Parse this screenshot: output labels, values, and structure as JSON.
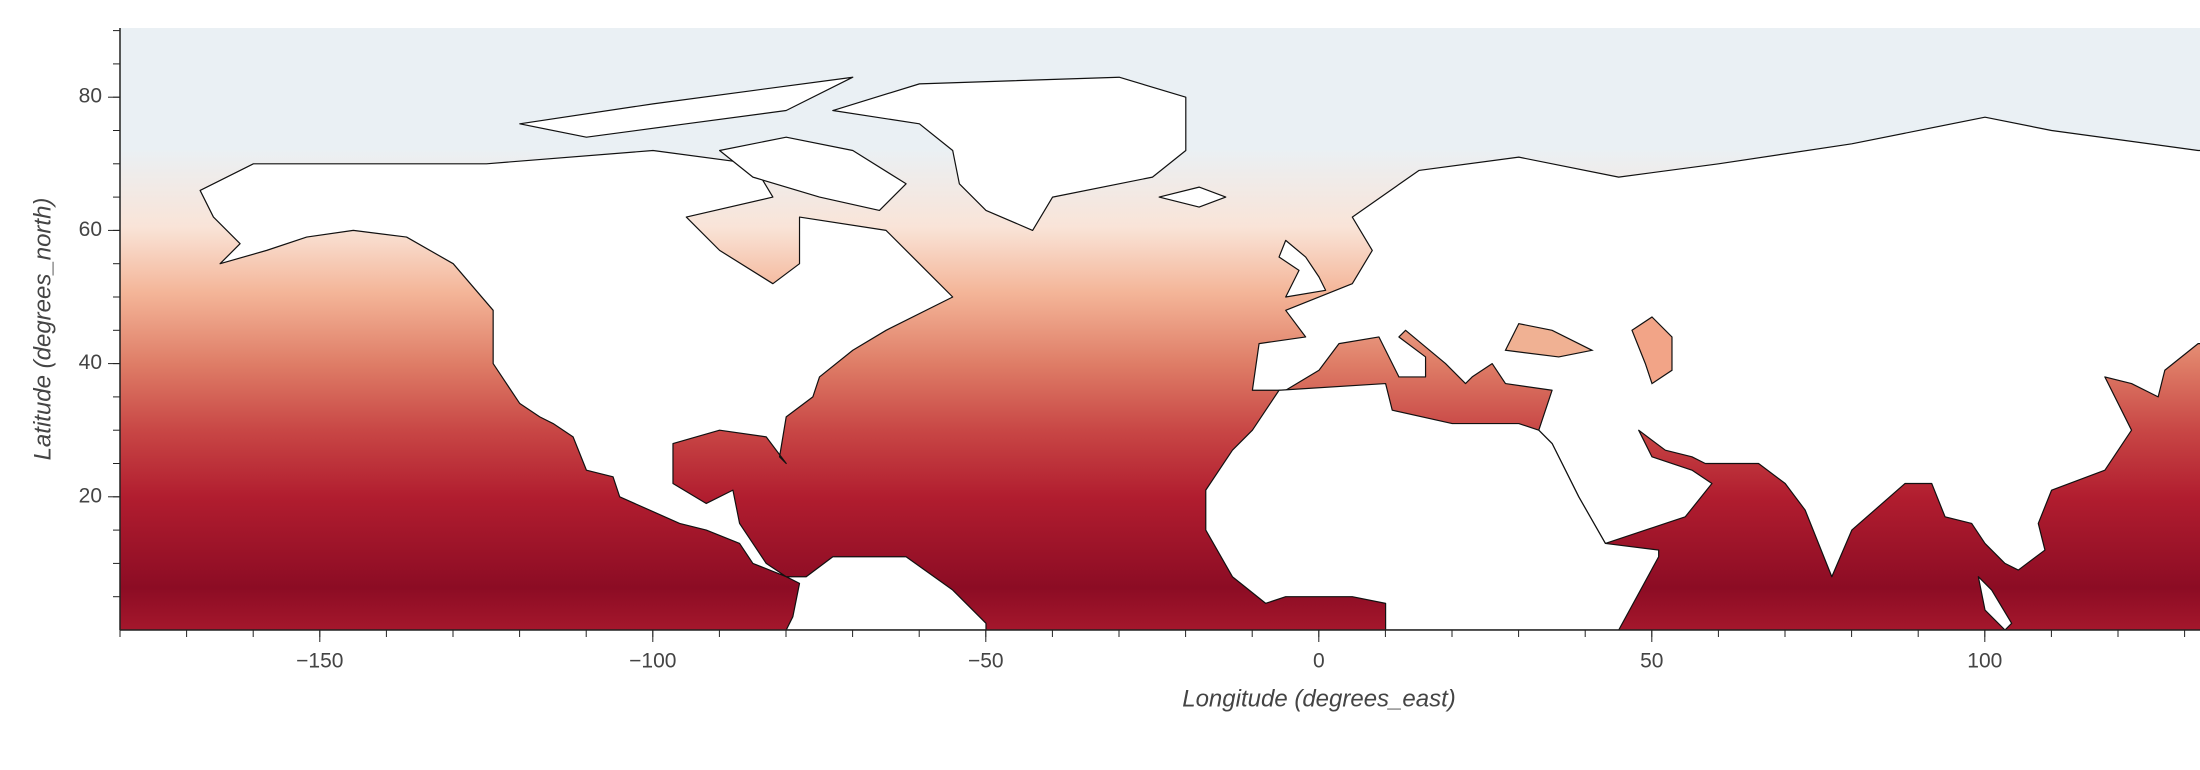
{
  "chart_data": {
    "type": "map",
    "xlabel": "Longitude (degrees_east)",
    "ylabel": "Latitude (degrees_north)",
    "xlim": [
      -180,
      132
    ],
    "ylim": [
      0,
      90
    ],
    "xticks": [
      {
        "value": -150,
        "label": "−150"
      },
      {
        "value": -100,
        "label": "−100"
      },
      {
        "value": -50,
        "label": "−50"
      },
      0,
      50,
      100
    ],
    "yticks": [
      20,
      40,
      60,
      80
    ]
  }
}
